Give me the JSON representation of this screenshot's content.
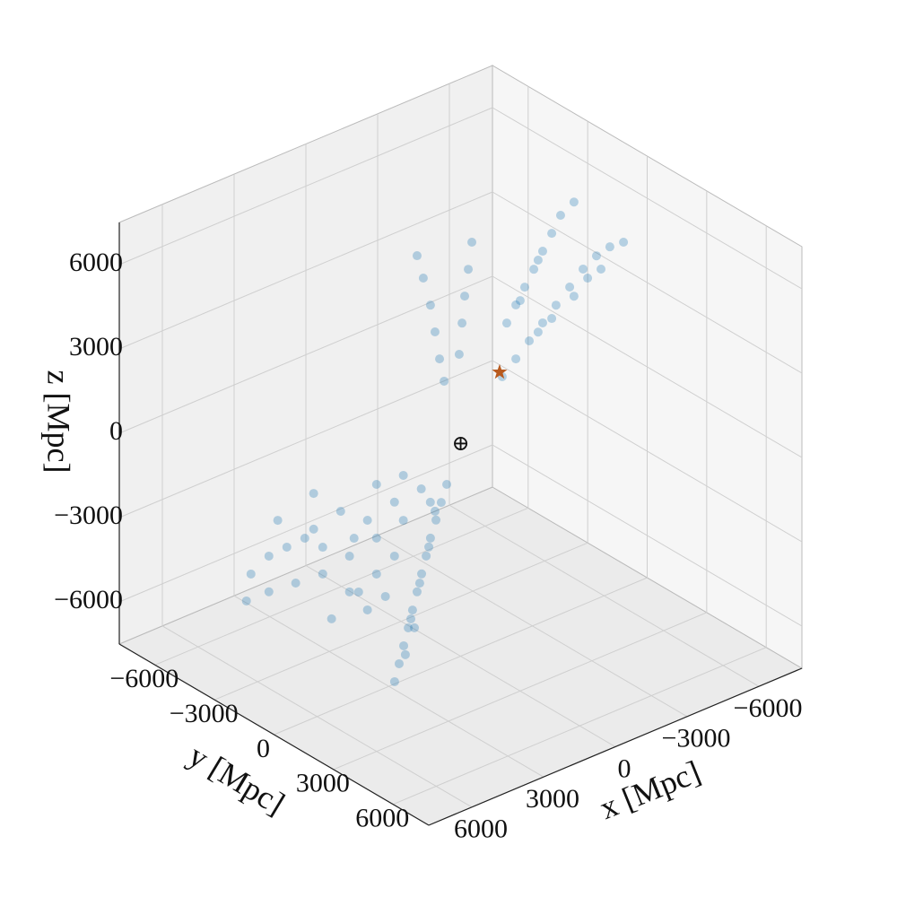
{
  "chart_data": {
    "type": "scatter3d",
    "xlabel": "x [Mpc]",
    "ylabel": "y [Mpc]",
    "zlabel": "z [Mpc]",
    "xlim": [
      -7800,
      7800
    ],
    "ylim": [
      -7800,
      7800
    ],
    "zlim": [
      -7500,
      7500
    ],
    "xticks": [
      {
        "value": -6000,
        "label": "−6000"
      },
      {
        "value": -3000,
        "label": "−3000"
      },
      0,
      3000,
      6000
    ],
    "yticks": [
      {
        "value": -6000,
        "label": "−6000"
      },
      {
        "value": -3000,
        "label": "−3000"
      },
      0,
      3000,
      6000
    ],
    "zticks": [
      {
        "value": -6000,
        "label": "−6000"
      },
      {
        "value": -3000,
        "label": "−3000"
      },
      0,
      3000,
      6000
    ],
    "grid": true,
    "color": "#1f77b4",
    "x": [
      580,
      810,
      1030,
      1260,
      1440,
      1630,
      1820,
      2010,
      2190,
      2380,
      2570,
      2760,
      1330,
      1710,
      2080,
      1930,
      2310,
      1070,
      -1970,
      -840,
      280,
      1410,
      2530,
      3660,
      4780,
      5530,
      4030,
      2910,
      1780,
      280,
      -840,
      1030,
      2160,
      660,
      -90,
      3280,
      4780,
      -1590,
      -470,
      1220,
      2530,
      280,
      1410,
      -470,
      660,
      5720,
      4410,
      2910,
      -1740,
      -2310,
      -2870,
      -3430,
      -3990,
      -4560,
      -5120,
      -5680,
      -6240,
      -6810,
      -3810,
      -4740,
      -3240,
      -5870,
      -5310,
      -1930,
      -2310,
      -2680,
      -3060,
      -3430,
      -3810,
      -4180,
      -4740,
      -3240,
      -2490,
      690,
      880,
      1070,
      1260,
      1560,
      1820,
      60,
      -60,
      -170,
      -320,
      -470
    ],
    "y": [
      0,
      0,
      0,
      0,
      0,
      0,
      0,
      0,
      0,
      0,
      0,
      0,
      0,
      0,
      0,
      0,
      0,
      0,
      -3900,
      -3900,
      -3900,
      -3900,
      -3900,
      -3900,
      -3900,
      -3900,
      -3900,
      -3900,
      -3900,
      -3900,
      -3900,
      -3900,
      -3900,
      -3900,
      -3900,
      -3900,
      -3900,
      -3900,
      -3900,
      -3900,
      -3900,
      -3900,
      -3900,
      -3900,
      -3900,
      -3900,
      -3900,
      -3900,
      0,
      0,
      0,
      0,
      0,
      0,
      0,
      0,
      0,
      0,
      0,
      0,
      0,
      0,
      0,
      0,
      0,
      0,
      0,
      0,
      0,
      0,
      0,
      0,
      0,
      0,
      0,
      0,
      0,
      0,
      0,
      0,
      0,
      0,
      0,
      0
    ],
    "z": [
      -1180,
      -1740,
      -2290,
      -2850,
      -3420,
      -3990,
      -4560,
      -5140,
      -5710,
      -6280,
      -6850,
      -7420,
      -3140,
      -4290,
      -5430,
      -5800,
      -6620,
      -1960,
      -4340,
      -4580,
      -4810,
      -5050,
      -5280,
      -5200,
      -5110,
      -4210,
      -3790,
      -3550,
      -3320,
      -2900,
      -2980,
      -6460,
      -7010,
      -7230,
      -7020,
      -3740,
      -3840,
      -3730,
      -3800,
      -4480,
      -4330,
      -6090,
      -6320,
      -5720,
      -4040,
      -5100,
      -2700,
      -2280,
      1820,
      2250,
      2690,
      3130,
      3560,
      4000,
      4440,
      4710,
      4830,
      4790,
      3150,
      3610,
      2870,
      4170,
      4050,
      3660,
      4170,
      4670,
      5170,
      5680,
      6180,
      6690,
      6960,
      5430,
      4260,
      2530,
      3390,
      4420,
      5440,
      6510,
      7400,
      3260,
      4330,
      5250,
      6150,
      7060
    ],
    "highlight": {
      "x": -1630,
      "y": 0,
      "z": 2020,
      "color": "#b85a1e",
      "marker": "star"
    },
    "annotations": [
      {
        "text": "⊕",
        "x": 0,
        "y": 0,
        "z": 0
      }
    ]
  }
}
